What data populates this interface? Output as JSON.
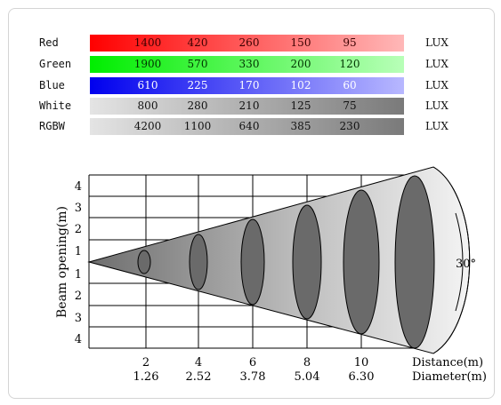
{
  "lux_table": {
    "unit": "LUX",
    "rows": [
      {
        "label": "Red",
        "values": [
          "1400",
          "420",
          "260",
          "150",
          "95"
        ],
        "gradient": [
          "#ff0000",
          "#ffb8b8"
        ],
        "text_color": "#3a0000"
      },
      {
        "label": "Green",
        "values": [
          "1900",
          "570",
          "330",
          "200",
          "120"
        ],
        "gradient": [
          "#00ee00",
          "#b8ffb8"
        ],
        "text_color": "#003300"
      },
      {
        "label": "Blue",
        "values": [
          "610",
          "225",
          "170",
          "102",
          "60"
        ],
        "gradient": [
          "#0000ee",
          "#b8b8ff"
        ],
        "text_color": "#ffffff"
      },
      {
        "label": "White",
        "values": [
          "800",
          "280",
          "210",
          "125",
          "75"
        ],
        "gradient": [
          "#e4e4e4",
          "#7a7a7a"
        ],
        "text_color": "#111111"
      },
      {
        "label": "RGBW",
        "values": [
          "4200",
          "1100",
          "640",
          "385",
          "230"
        ],
        "gradient": [
          "#e4e4e4",
          "#7a7a7a"
        ],
        "text_color": "#111111"
      }
    ]
  },
  "beam": {
    "y_axis_label": "Beam opening(m)",
    "y_ticks_upper": [
      "4",
      "3",
      "2",
      "1"
    ],
    "y_ticks_lower": [
      "1",
      "2",
      "3",
      "4"
    ],
    "distance_label": "Distance(m)",
    "diameter_label": "Diameter(m)",
    "distances": [
      "2",
      "4",
      "6",
      "8",
      "10"
    ],
    "diameters": [
      "1.26",
      "2.52",
      "3.78",
      "5.04",
      "6.30"
    ],
    "angle_label": "30°"
  }
}
